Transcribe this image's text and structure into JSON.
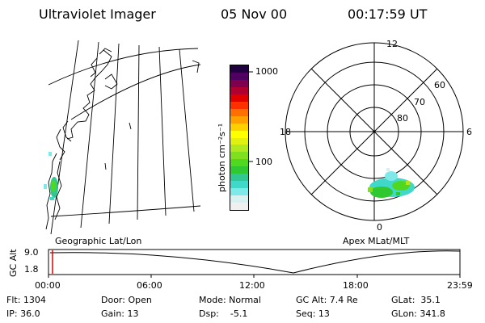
{
  "header": {
    "instrument": "Ultraviolet Imager",
    "date": "05 Nov 00",
    "time": "00:17:59 UT"
  },
  "colorbar": {
    "unit_label": "photon cm⁻²s⁻¹",
    "ticks": [
      "1000",
      "100"
    ],
    "colors": [
      "#f0f0f0",
      "#d8f0f0",
      "#7fe8e8",
      "#40d8c8",
      "#30c890",
      "#30c830",
      "#50d820",
      "#80e020",
      "#b0e820",
      "#e0f010",
      "#ffff00",
      "#ffd000",
      "#ffa000",
      "#ff7000",
      "#ff3000",
      "#e00000",
      "#b00030",
      "#800050",
      "#500060",
      "#200040"
    ]
  },
  "polar_plot": {
    "mlt_labels": {
      "top": "12",
      "left": "18",
      "right": "6",
      "bottom": "0"
    },
    "lat_labels": [
      "60",
      "70",
      "80"
    ]
  },
  "timeline": {
    "left_title": "Geographic Lat/Lon",
    "right_title": "Apex MLat/MLT",
    "y_axis_label": "GC Alt",
    "y_ticks": [
      "9.0",
      "1.8"
    ],
    "x_ticks": [
      "00:00",
      "06:00",
      "12:00",
      "18:00",
      "23:59"
    ]
  },
  "status": {
    "flt": "Flt: 1304",
    "ip": "IP: 36.0",
    "door": "Door: Open",
    "gain": "Gain: 13",
    "mode": "Mode: Normal",
    "dsp": "Dsp:    -5.1",
    "gc_alt": "GC Alt: 7.4 Re",
    "seq": "Seq: 13",
    "glat": "GLat:  35.1",
    "glon": "GLon: 341.8"
  }
}
